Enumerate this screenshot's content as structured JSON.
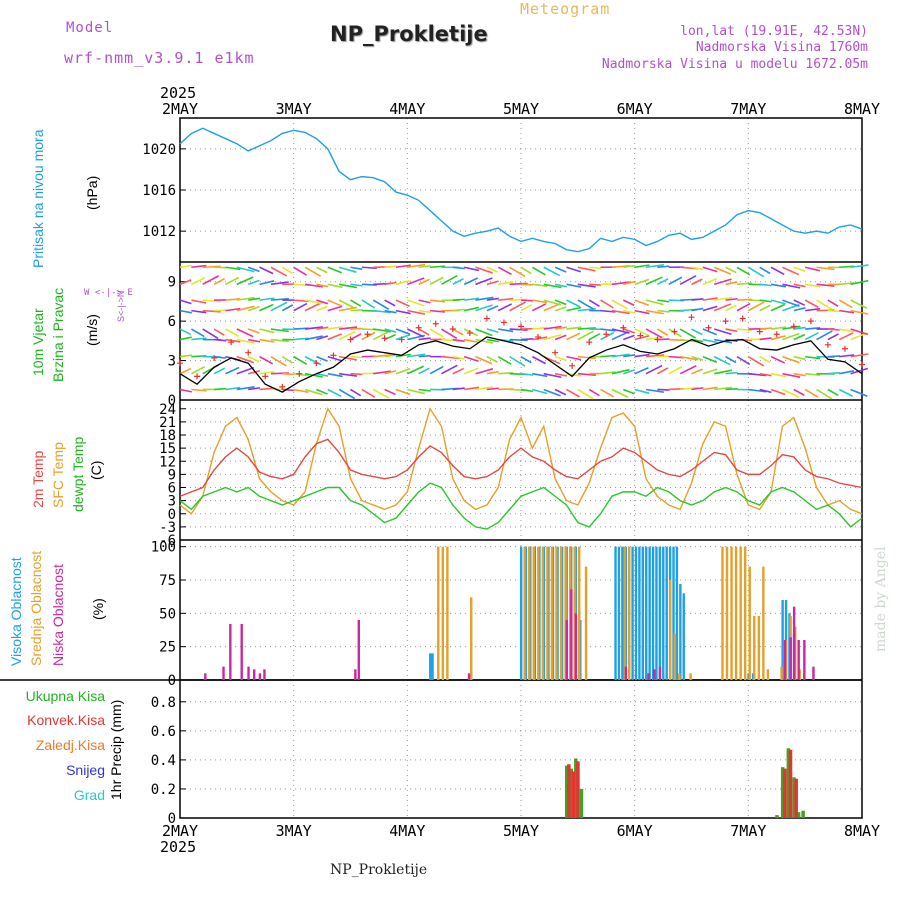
{
  "header": {
    "model_label": "Model",
    "model_name": "wrf-nmm_v3.9.1 e1km",
    "chart_kind": "Meteogram",
    "title": "NP_Prokletije",
    "coords": "lon,lat (19.91E, 42.53N)",
    "altitude": "Nadmorska Visina 1760m",
    "model_altitude": "Nadmorska Visina u modelu 1672.05m",
    "year_top": "2025",
    "year_bottom": "2025",
    "footer": "NP_Prokletije",
    "credit": "made by Angel"
  },
  "colors": {
    "pressure": "#1ea0e6",
    "wind_speed": "#000000",
    "wind_gust": "#e63232",
    "temp_2m": "#e64646",
    "temp_sfc": "#e6a028",
    "dewpoint": "#28c828",
    "cloud_high": "#1ea0e6",
    "cloud_mid": "#e6a028",
    "cloud_low": "#c828a0",
    "precip_total": "#46a028",
    "precip_convective": "#e63232",
    "precip_frozen": "#f07828",
    "precip_snow": "#3232e6",
    "precip_hail": "#28c8c8"
  },
  "panel_labels": {
    "pressure": {
      "name": "Pritisak na nivou mora",
      "unit": "(hPa)"
    },
    "wind": {
      "name1": "10m Vjetar",
      "name2": "Brzina i Pravac",
      "unit": "(m/s)",
      "compass": "W <-|-> E",
      "compass_ns": "S<-|->N"
    },
    "temp": {
      "name1": "2m Temp",
      "name2": "SFC Temp",
      "name3": "dewpt Temp",
      "unit": "(C)"
    },
    "cloud": {
      "name1": "Visoka Oblacnost",
      "name2": "Srednja Oblacnost",
      "name3": "Niska Oblacnost",
      "unit": "(%)"
    },
    "precip": {
      "unit": "1hr Precip (mm)",
      "legend": [
        "Ukupna Kisa",
        "Konvek.Kisa",
        "Zaledj.Kisa",
        "Snijeg",
        "Grad"
      ]
    }
  },
  "chart_data": [
    {
      "type": "line",
      "name": "pressure",
      "x_ticks": [
        "2MAY",
        "3MAY",
        "4MAY",
        "5MAY",
        "6MAY",
        "7MAY",
        "8MAY"
      ],
      "ylim": [
        1009,
        1023
      ],
      "y_ticks": [
        1012,
        1016,
        1020
      ],
      "series": [
        {
          "x": [
            0,
            0.1,
            0.2,
            0.3,
            0.4,
            0.5,
            0.6,
            0.7,
            0.8,
            0.9,
            1.0,
            1.1,
            1.2,
            1.3,
            1.4,
            1.5,
            1.6,
            1.7,
            1.8,
            1.9,
            2.0,
            2.1,
            2.2,
            2.3,
            2.4,
            2.5,
            2.6,
            2.7,
            2.8,
            2.9,
            3.0,
            3.1,
            3.2,
            3.3,
            3.4,
            3.5,
            3.6,
            3.7,
            3.8,
            3.9,
            4.0,
            4.1,
            4.2,
            4.3,
            4.4,
            4.5,
            4.6,
            4.7,
            4.8,
            4.9,
            5.0,
            5.1,
            5.2,
            5.3,
            5.4,
            5.5,
            5.6,
            5.7,
            5.8,
            5.9,
            6.0
          ],
          "values": [
            1020.5,
            1021.5,
            1022,
            1021.5,
            1021,
            1020.5,
            1019.8,
            1020.3,
            1020.8,
            1021.5,
            1021.8,
            1021.6,
            1021,
            1020,
            1017.8,
            1017,
            1017.3,
            1017.2,
            1016.8,
            1015.8,
            1015.5,
            1015,
            1014,
            1013,
            1012,
            1011.5,
            1011.8,
            1012,
            1012.3,
            1011.5,
            1011,
            1011.3,
            1011,
            1010.8,
            1010.2,
            1010,
            1010.3,
            1011.3,
            1011,
            1011.4,
            1011.2,
            1010.6,
            1011,
            1011.6,
            1011.8,
            1011.2,
            1011.4,
            1012,
            1012.6,
            1013.6,
            1014,
            1013.8,
            1013.2,
            1012.6,
            1012,
            1011.8,
            1012,
            1011.8,
            1012.4,
            1012.6,
            1012.2
          ]
        }
      ]
    },
    {
      "type": "line",
      "name": "wind",
      "ylim": [
        0,
        10.5
      ],
      "y_ticks": [
        0,
        3,
        6,
        9
      ],
      "series": [
        {
          "name": "speed",
          "x": [
            0,
            0.15,
            0.3,
            0.45,
            0.6,
            0.75,
            0.9,
            1.05,
            1.2,
            1.35,
            1.5,
            1.65,
            1.8,
            1.95,
            2.1,
            2.25,
            2.4,
            2.55,
            2.7,
            2.85,
            3.0,
            3.15,
            3.3,
            3.45,
            3.6,
            3.75,
            3.9,
            4.05,
            4.2,
            4.35,
            4.5,
            4.65,
            4.8,
            4.95,
            5.1,
            5.25,
            5.4,
            5.55,
            5.7,
            5.85,
            6.0
          ],
          "values": [
            2.0,
            1.2,
            2.5,
            3.2,
            2.8,
            1.2,
            0.6,
            1.4,
            2.0,
            2.5,
            3.5,
            3.8,
            3.6,
            3.4,
            4.2,
            4.5,
            4.1,
            3.9,
            4.8,
            4.5,
            4.2,
            3.6,
            2.7,
            1.8,
            3.2,
            3.8,
            4.2,
            3.7,
            3.5,
            3.9,
            4.6,
            4.1,
            4.5,
            4.6,
            3.9,
            3.8,
            4.2,
            4.5,
            3.1,
            2.9,
            2.0
          ]
        },
        {
          "name": "gust",
          "x": [
            0,
            0.15,
            0.3,
            0.45,
            0.6,
            0.75,
            0.9,
            1.05,
            1.2,
            1.35,
            1.5,
            1.65,
            1.8,
            1.95,
            2.1,
            2.25,
            2.4,
            2.55,
            2.7,
            2.85,
            3.0,
            3.15,
            3.3,
            3.45,
            3.6,
            3.75,
            3.9,
            4.05,
            4.2,
            4.35,
            4.5,
            4.65,
            4.8,
            4.95,
            5.1,
            5.25,
            5.4,
            5.55,
            5.7,
            5.85,
            6.0
          ],
          "values": [
            2.8,
            1.8,
            3.2,
            4.4,
            3.6,
            1.8,
            1.0,
            2.0,
            2.8,
            3.4,
            4.6,
            5.0,
            4.7,
            4.6,
            5.5,
            5.8,
            5.4,
            5.1,
            6.2,
            5.9,
            5.6,
            4.8,
            3.6,
            2.6,
            4.4,
            5.0,
            5.5,
            4.9,
            4.6,
            5.2,
            6.3,
            5.5,
            6.0,
            6.2,
            5.2,
            5.0,
            5.6,
            6.0,
            4.2,
            3.9,
            2.7
          ]
        }
      ]
    },
    {
      "type": "line",
      "name": "temperature",
      "ylim": [
        -6,
        26
      ],
      "y_ticks": [
        -6,
        -3,
        0,
        3,
        6,
        9,
        12,
        15,
        18,
        21,
        24
      ],
      "series": [
        {
          "name": "2m",
          "x": [
            0,
            0.1,
            0.2,
            0.3,
            0.4,
            0.5,
            0.6,
            0.7,
            0.8,
            0.9,
            1.0,
            1.1,
            1.2,
            1.3,
            1.4,
            1.5,
            1.6,
            1.7,
            1.8,
            1.9,
            2.0,
            2.1,
            2.2,
            2.3,
            2.4,
            2.5,
            2.6,
            2.7,
            2.8,
            2.9,
            3.0,
            3.1,
            3.2,
            3.3,
            3.4,
            3.5,
            3.6,
            3.7,
            3.8,
            3.9,
            4.0,
            4.1,
            4.2,
            4.3,
            4.4,
            4.5,
            4.6,
            4.7,
            4.8,
            4.9,
            5.0,
            5.1,
            5.2,
            5.3,
            5.4,
            5.5,
            5.6,
            5.7,
            5.8,
            5.9,
            6.0
          ],
          "values": [
            4,
            5,
            6,
            10,
            13,
            15,
            13,
            9.5,
            8.5,
            8,
            9,
            13,
            16,
            17,
            14,
            10,
            9,
            8.5,
            8,
            8.5,
            10,
            13,
            15.5,
            14,
            11,
            8.5,
            8,
            8.5,
            10,
            13,
            15,
            13,
            12,
            10,
            8.5,
            8,
            10,
            12,
            13,
            15,
            14,
            12,
            10,
            9,
            8.5,
            10,
            12,
            14,
            13.5,
            10,
            9,
            9,
            11,
            13.5,
            13,
            10,
            8.5,
            8,
            7,
            6.5,
            6
          ]
        },
        {
          "name": "SFC",
          "x": [
            0,
            0.1,
            0.2,
            0.3,
            0.4,
            0.5,
            0.6,
            0.7,
            0.8,
            0.9,
            1.0,
            1.1,
            1.2,
            1.3,
            1.4,
            1.5,
            1.6,
            1.7,
            1.8,
            1.9,
            2.0,
            2.1,
            2.2,
            2.3,
            2.4,
            2.5,
            2.6,
            2.7,
            2.8,
            2.9,
            3.0,
            3.1,
            3.2,
            3.3,
            3.4,
            3.5,
            3.6,
            3.7,
            3.8,
            3.9,
            4.0,
            4.1,
            4.2,
            4.3,
            4.4,
            4.5,
            4.6,
            4.7,
            4.8,
            4.9,
            5.0,
            5.1,
            5.2,
            5.3,
            5.4,
            5.5,
            5.6,
            5.7,
            5.8,
            5.9,
            6.0
          ],
          "values": [
            2,
            0,
            4,
            14,
            20,
            22,
            17,
            8,
            5,
            3,
            2,
            5,
            16,
            24,
            20,
            8,
            3,
            2,
            1,
            2,
            5,
            15,
            24,
            20,
            8,
            3,
            1,
            2,
            6,
            17,
            22,
            15,
            20,
            8,
            3,
            2,
            7,
            15,
            22,
            23,
            20,
            8,
            4,
            2,
            1,
            7,
            16,
            21,
            20,
            9,
            2,
            1,
            5,
            20,
            22,
            15,
            6,
            2,
            3,
            1,
            0
          ]
        },
        {
          "name": "dewpoint",
          "x": [
            0,
            0.1,
            0.2,
            0.3,
            0.4,
            0.5,
            0.6,
            0.7,
            0.8,
            0.9,
            1.0,
            1.1,
            1.2,
            1.3,
            1.4,
            1.5,
            1.6,
            1.7,
            1.8,
            1.9,
            2.0,
            2.1,
            2.2,
            2.3,
            2.4,
            2.5,
            2.6,
            2.7,
            2.8,
            2.9,
            3.0,
            3.1,
            3.2,
            3.3,
            3.4,
            3.5,
            3.6,
            3.7,
            3.8,
            3.9,
            4.0,
            4.1,
            4.2,
            4.3,
            4.4,
            4.5,
            4.6,
            4.7,
            4.8,
            4.9,
            5.0,
            5.1,
            5.2,
            5.3,
            5.4,
            5.5,
            5.6,
            5.7,
            5.8,
            5.9,
            6.0
          ],
          "values": [
            3,
            1,
            4,
            5,
            6,
            5,
            6,
            4,
            3,
            2,
            3,
            4,
            5,
            6,
            6,
            3,
            2,
            0,
            -2,
            -1,
            2,
            5,
            7,
            6,
            2,
            -1,
            -3,
            -3.5,
            -2,
            1,
            4,
            5,
            6,
            4,
            2,
            -2,
            -3,
            0,
            4,
            5,
            5,
            4,
            6,
            5,
            3,
            2,
            3,
            5,
            6,
            5,
            3,
            2,
            5,
            6,
            5,
            3,
            1,
            2,
            0,
            -3,
            -1
          ]
        }
      ]
    },
    {
      "type": "bar",
      "name": "cloud",
      "ylim": [
        0,
        105
      ],
      "y_ticks": [
        0,
        25,
        50,
        75,
        100
      ],
      "series": [
        {
          "name": "high",
          "x": [
            2.2,
            2.22,
            3.0,
            3.04,
            3.08,
            3.12,
            3.16,
            3.2,
            3.24,
            3.28,
            3.32,
            3.36,
            3.4,
            3.44,
            3.48,
            3.52,
            3.83,
            3.86,
            3.89,
            3.92,
            3.95,
            3.98,
            4.01,
            4.04,
            4.07,
            4.1,
            4.13,
            4.16,
            4.19,
            4.22,
            4.25,
            4.28,
            4.31,
            4.34,
            4.37,
            4.4,
            4.43,
            5.0,
            5.04,
            5.3,
            5.33,
            5.36,
            5.4
          ],
          "values": [
            20,
            20,
            100,
            100,
            100,
            100,
            100,
            100,
            100,
            100,
            100,
            100,
            100,
            100,
            100,
            45,
            100,
            100,
            100,
            100,
            100,
            100,
            100,
            100,
            100,
            100,
            100,
            100,
            100,
            100,
            100,
            100,
            100,
            100,
            100,
            72,
            65,
            5,
            5,
            60,
            60,
            50,
            35
          ]
        },
        {
          "name": "mid",
          "x": [
            2.26,
            2.3,
            2.34,
            2.55,
            3.02,
            3.06,
            3.1,
            3.14,
            3.18,
            3.22,
            3.26,
            3.3,
            3.34,
            3.38,
            3.42,
            3.46,
            3.5,
            3.56,
            3.9,
            3.94,
            4.3,
            4.34,
            4.38,
            4.48,
            4.76,
            4.8,
            4.84,
            4.88,
            4.92,
            4.96,
            5.0,
            5.04,
            5.08,
            5.12,
            5.16,
            5.28,
            5.32,
            5.36,
            5.4,
            5.44,
            5.48
          ],
          "values": [
            100,
            100,
            100,
            62,
            100,
            100,
            100,
            100,
            100,
            100,
            100,
            100,
            100,
            100,
            100,
            100,
            100,
            85,
            100,
            100,
            75,
            35,
            5,
            5,
            100,
            100,
            100,
            100,
            100,
            100,
            85,
            48,
            48,
            85,
            8,
            10,
            30,
            48,
            40,
            8,
            5
          ]
        },
        {
          "name": "low",
          "x": [
            0.2,
            0.36,
            0.42,
            0.52,
            0.58,
            0.63,
            0.68,
            0.72,
            1.52,
            1.55,
            2.52,
            3.38,
            3.42,
            3.46,
            3.9,
            4.1,
            4.15,
            4.2,
            5.3,
            5.35,
            5.38,
            5.42,
            5.47,
            5.55
          ],
          "values": [
            5,
            10,
            42,
            42,
            10,
            8,
            5,
            8,
            8,
            45,
            5,
            45,
            68,
            50,
            10,
            5,
            8,
            10,
            30,
            32,
            55,
            30,
            30,
            10
          ]
        }
      ]
    },
    {
      "type": "bar",
      "name": "precipitation",
      "ylim": [
        0,
        0.95
      ],
      "y_ticks": [
        0,
        0.2,
        0.4,
        0.6,
        0.8
      ],
      "series": [
        {
          "name": "total",
          "x": [
            3.4,
            3.44,
            3.48,
            3.53,
            5.25,
            5.3,
            5.35,
            5.4,
            5.44,
            5.48
          ],
          "values": [
            0.36,
            0.34,
            0.41,
            0.2,
            0.02,
            0.35,
            0.48,
            0.28,
            0.04,
            0.05
          ]
        },
        {
          "name": "convective",
          "x": [
            3.41,
            3.45,
            3.49,
            5.31,
            5.36,
            5.41
          ],
          "values": [
            0.37,
            0.32,
            0.39,
            0.34,
            0.47,
            0.27
          ]
        }
      ]
    }
  ]
}
